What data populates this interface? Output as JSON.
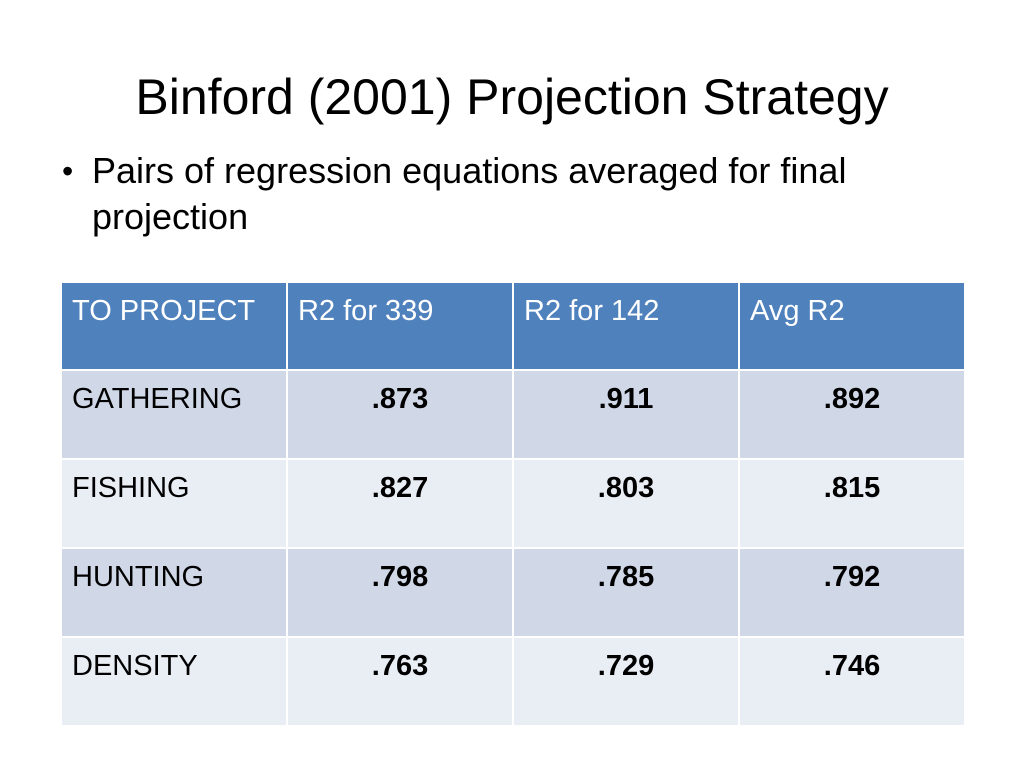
{
  "slide": {
    "title": "Binford (2001) Projection Strategy",
    "bullets": [
      "Pairs of regression equations averaged for final projection"
    ]
  },
  "table": {
    "headers": [
      "TO PROJECT",
      "R2 for 339",
      "R2 for 142",
      "Avg R2"
    ],
    "rows": [
      [
        "GATHERING",
        ".873",
        ".911",
        ".892"
      ],
      [
        "FISHING",
        ".827",
        ".803",
        ".815"
      ],
      [
        "HUNTING",
        ".798",
        ".785",
        ".792"
      ],
      [
        "DENSITY",
        ".763",
        ".729",
        ".746"
      ]
    ]
  },
  "colors": {
    "header_fill": "#4f81bd",
    "row_fill_dark": "#d0d8e8",
    "row_fill_light": "#e9edf4"
  }
}
